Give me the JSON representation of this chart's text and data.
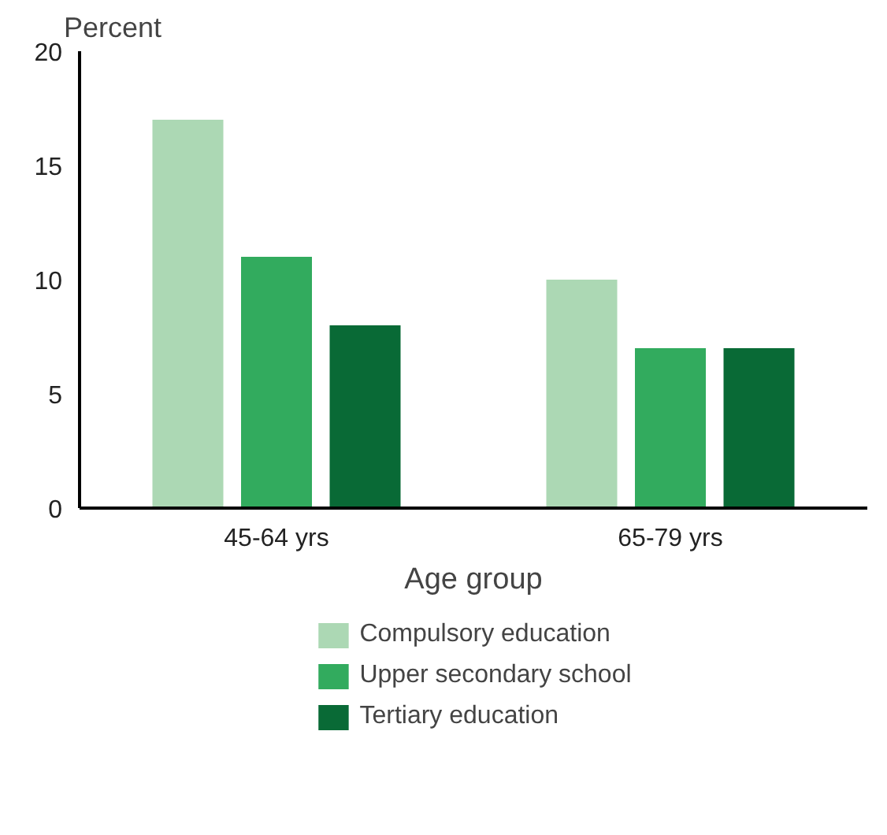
{
  "chart_data": {
    "type": "bar",
    "ylabel": "Percent",
    "xlabel": "Age group",
    "categories": [
      "45-64 yrs",
      "65-79 yrs"
    ],
    "series": [
      {
        "name": "Compulsory education",
        "color": "#acd8b4",
        "values": [
          17,
          10
        ]
      },
      {
        "name": "Upper secondary school",
        "color": "#32ab5e",
        "values": [
          11,
          7
        ]
      },
      {
        "name": "Tertiary education",
        "color": "#096a36",
        "values": [
          8,
          7
        ]
      }
    ],
    "ylim": [
      0,
      20
    ],
    "yticks": [
      0,
      5,
      10,
      15,
      20
    ],
    "grid": false,
    "legend": "bottom"
  }
}
